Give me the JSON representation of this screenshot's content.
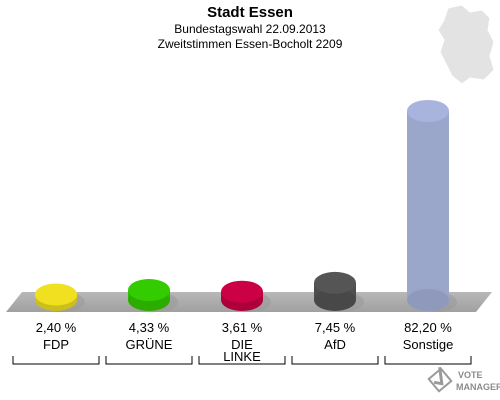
{
  "header": {
    "title": "Stadt Essen",
    "subtitle1": "Bundestagswahl 22.09.2013",
    "subtitle2": "Zweitstimmen Essen-Bocholt 2209"
  },
  "watermark": {
    "line1": "VOTE",
    "line2": "MANAGER"
  },
  "chart_data": {
    "type": "bar",
    "title": "Stadt Essen",
    "subtitle": "Bundestagswahl 22.09.2013 / Zweitstimmen Essen-Bocholt 2209",
    "categories": [
      "FDP",
      "GRÜNE",
      "DIE LINKE",
      "AfD",
      "Sonstige"
    ],
    "category_lines": [
      [
        "FDP"
      ],
      [
        "GRÜNE"
      ],
      [
        "DIE",
        "LINKE"
      ],
      [
        "AfD"
      ],
      [
        "Sonstige"
      ]
    ],
    "values": [
      2.4,
      4.33,
      3.61,
      7.45,
      82.2
    ],
    "value_labels": [
      "2,40 %",
      "4,33 %",
      "3,61 %",
      "7,45 %",
      "82,20 %"
    ],
    "colors": [
      "#f0e020",
      "#33cc00",
      "#cc0044",
      "#555555",
      "#a8b4dd"
    ],
    "unit": "%",
    "ylim": [
      0,
      100
    ],
    "grid": false,
    "legend": "none"
  }
}
